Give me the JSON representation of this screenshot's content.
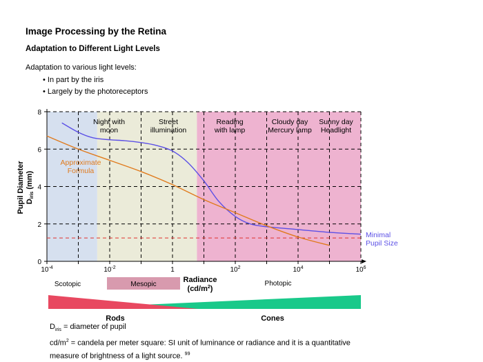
{
  "header": {
    "title": "Image Processing by the Retina",
    "subtitle": "Adaptation to Different Light Levels",
    "intro": "Adaptation to various light levels:",
    "bullets": [
      "In part by the iris",
      "Largely by the photoreceptors"
    ]
  },
  "colors": {
    "scotopic_bg": "#d6e0ef",
    "mesopic_bg": "#ebebd9",
    "photopic_bg": "#eeb3d0",
    "pupil_curve": "#5b4fe6",
    "formula_curve": "#e07a1c",
    "minimal_line": "#e0302c",
    "rods_wedge": "#e84860",
    "cones_wedge": "#19c98a",
    "mesopic_box": "#d89aae"
  },
  "chart_data": {
    "type": "line",
    "xscale": "log",
    "xlim": [
      0.0001,
      1000000
    ],
    "ylim": [
      0,
      8
    ],
    "yticks": [
      0,
      2,
      4,
      6,
      8
    ],
    "xticks": [
      {
        "value": 0.0001,
        "base": "10",
        "exp": "-4"
      },
      {
        "value": 0.01,
        "base": "10",
        "exp": "-2"
      },
      {
        "value": 1,
        "base": "1",
        "exp": ""
      },
      {
        "value": 100,
        "base": "10",
        "exp": "2"
      },
      {
        "value": 10000,
        "base": "10",
        "exp": "4"
      },
      {
        "value": 1000000,
        "base": "10",
        "exp": "6"
      }
    ],
    "ylabel": "Pupil Diameter",
    "ylabel_sub": "D",
    "ylabel_sub_small": "iris",
    "ylabel_unit": " (mm)",
    "xlabel": "Radiance",
    "xlabel_unit": "(cd/m",
    "xlabel_unit_sup": "2",
    "xlabel_unit_end": ")",
    "grid": true,
    "series": [
      {
        "name": "pupil",
        "x": [
          0.0003,
          0.001,
          0.003,
          0.01,
          0.03,
          0.1,
          0.3,
          1,
          3,
          10,
          30,
          100,
          300,
          1000,
          10000,
          100000,
          1000000
        ],
        "y": [
          7.4,
          6.9,
          6.6,
          6.5,
          6.45,
          6.35,
          6.2,
          5.9,
          5.3,
          4.3,
          3.2,
          2.4,
          2.0,
          1.85,
          1.7,
          1.55,
          1.45
        ]
      },
      {
        "name": "formula",
        "x": [
          0.0001,
          0.001,
          0.01,
          0.1,
          1,
          10,
          100,
          1000,
          10000,
          100000
        ],
        "y": [
          6.7,
          6.0,
          5.4,
          4.8,
          4.1,
          3.3,
          2.6,
          1.9,
          1.3,
          0.85
        ]
      }
    ],
    "minimal_pupil_y": 1.25,
    "regions": [
      {
        "name": "Scotopic",
        "from": 0.0001,
        "to": 0.004
      },
      {
        "name": "Mesopic",
        "from": 0.004,
        "to": 6
      },
      {
        "name": "Photopic",
        "from": 6,
        "to": 1000000
      }
    ],
    "annotations": {
      "night": [
        "Night with",
        "moon"
      ],
      "street": [
        "Street",
        "illumination"
      ],
      "reading": [
        "Reading",
        "with lamp"
      ],
      "cloudy": [
        "Cloudy day",
        "Mercury lamp"
      ],
      "sunny": [
        "Sunny day",
        "Headlight"
      ],
      "formula": [
        "Approximate",
        "Formula"
      ],
      "minimal": [
        "Minimal",
        "Pupil Size"
      ]
    },
    "labels": {
      "scotopic": "Scotopic",
      "mesopic": "Mesopic",
      "photopic": "Photopic",
      "rods": "Rods",
      "cones": "Cones"
    }
  },
  "footer": {
    "line1_sym": "D",
    "line1_sub": "iris",
    "line1_rest": " = diameter of pupil",
    "line2_a": "cd/m",
    "line2_sup": "2",
    "line2_b": " = candela per meter square: SI unit of luminance or radiance and it is a quantitative",
    "line3": "measure of brightness of a light source. ",
    "line3_sup": "99"
  }
}
